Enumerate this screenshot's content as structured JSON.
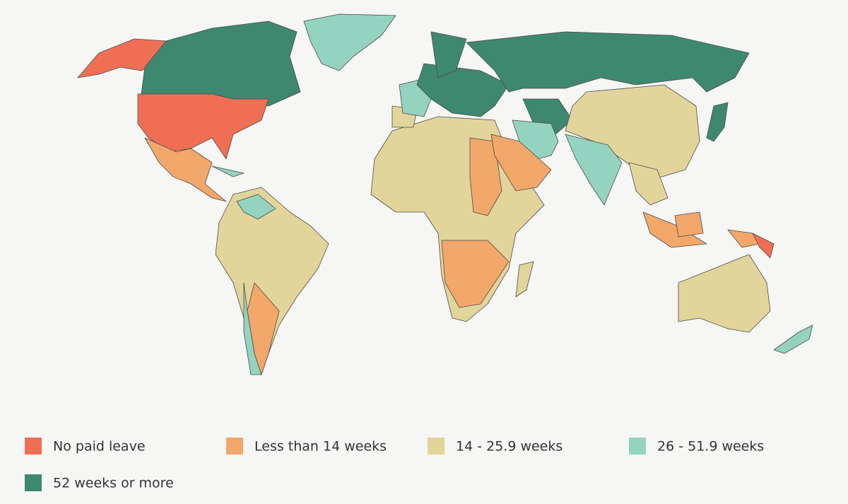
{
  "legend": {
    "items": [
      {
        "label": "No paid leave",
        "color": "#ef6f55"
      },
      {
        "label": "Less than 14 weeks",
        "color": "#f2a86b"
      },
      {
        "label": "14 - 25.9 weeks",
        "color": "#e2d59b"
      },
      {
        "label": "26 - 51.9 weeks",
        "color": "#94d3bf"
      },
      {
        "label": "52 weeks or more",
        "color": "#3f8870"
      }
    ]
  }
}
